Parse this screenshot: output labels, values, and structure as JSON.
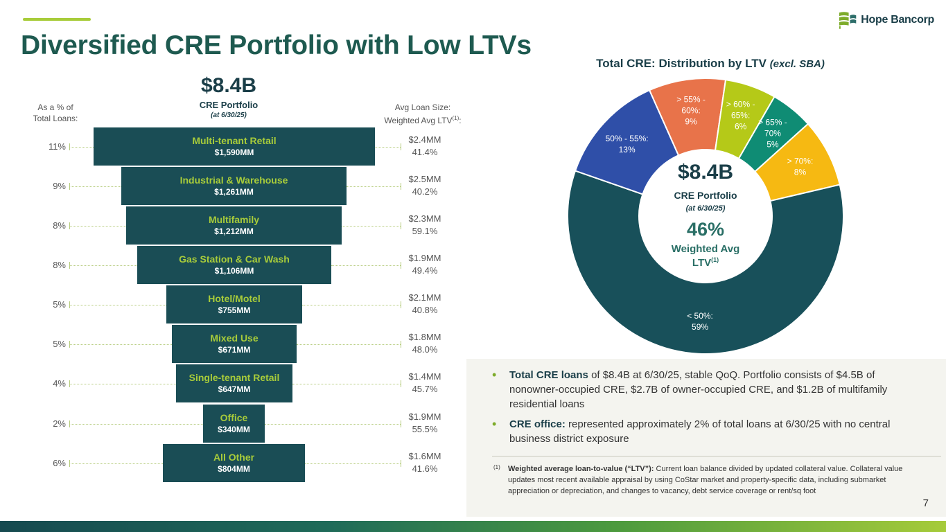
{
  "page": {
    "title": "Diversified CRE Portfolio with Low LTVs",
    "page_number": "7"
  },
  "logo": {
    "text": "Hope Bancorp",
    "colors": [
      "#7dab2a",
      "#1a3e48"
    ]
  },
  "portfolio": {
    "total": "$8.4B",
    "label": "CRE Portfolio",
    "date": "(at 6/30/25)"
  },
  "headers": {
    "left_line1": "As a % of",
    "left_line2": "Total Loans:",
    "right_line1": "Avg Loan Size:",
    "right_line2": "Weighted Avg LTV",
    "right_sup": "(1)",
    "right_suffix": ":"
  },
  "segments": [
    {
      "name": "Multi-tenant Retail",
      "amount": "$1,590MM",
      "pct": "11%",
      "avg_size": "$2.4MM",
      "ltv": "41.4%"
    },
    {
      "name": "Industrial & Warehouse",
      "amount": "$1,261MM",
      "pct": "9%",
      "avg_size": "$2.5MM",
      "ltv": "40.2%"
    },
    {
      "name": "Multifamily",
      "amount": "$1,212MM",
      "pct": "8%",
      "avg_size": "$2.3MM",
      "ltv": "59.1%"
    },
    {
      "name": "Gas Station & Car Wash",
      "amount": "$1,106MM",
      "pct": "8%",
      "avg_size": "$1.9MM",
      "ltv": "49.4%"
    },
    {
      "name": "Hotel/Motel",
      "amount": "$755MM",
      "pct": "5%",
      "avg_size": "$2.1MM",
      "ltv": "40.8%"
    },
    {
      "name": "Mixed Use",
      "amount": "$671MM",
      "pct": "5%",
      "avg_size": "$1.8MM",
      "ltv": "48.0%"
    },
    {
      "name": "Single-tenant Retail",
      "amount": "$647MM",
      "pct": "4%",
      "avg_size": "$1.4MM",
      "ltv": "45.7%"
    },
    {
      "name": "Office",
      "amount": "$340MM",
      "pct": "2%",
      "avg_size": "$1.9MM",
      "ltv": "55.5%"
    },
    {
      "name": "All Other",
      "amount": "$804MM",
      "pct": "6%",
      "avg_size": "$1.6MM",
      "ltv": "41.6%"
    }
  ],
  "donut": {
    "title": "Total CRE: Distribution by LTV",
    "title_suffix": "(excl. SBA)",
    "center_big": "$8.4B",
    "center_label": "CRE Portfolio",
    "center_date": "(at 6/30/25)",
    "center_pct": "46%",
    "center_line1": "Weighted Avg",
    "center_line2": "LTV",
    "center_sup": "(1)"
  },
  "chart_data": {
    "type": "pie",
    "title": "Total CRE: Distribution by LTV (excl. SBA)",
    "slices": [
      {
        "label": "> 55% - 60%",
        "value": 9,
        "color": "#e8734a",
        "label_lines": [
          "> 55% -",
          "60%:",
          "9%"
        ]
      },
      {
        "label": "> 60% - 65%",
        "value": 6,
        "color": "#b5c918",
        "label_lines": [
          "> 60% -",
          "65%:",
          "6%"
        ]
      },
      {
        "label": "> 65% - 70%",
        "value": 5,
        "color": "#0f8c74",
        "label_lines": [
          "> 65% -",
          "70%",
          "5%"
        ]
      },
      {
        "label": "> 70%",
        "value": 8,
        "color": "#f6b912",
        "label_lines": [
          "> 70%:",
          "8%"
        ]
      },
      {
        "label": "< 50%",
        "value": 59,
        "color": "#18505a",
        "label_lines": [
          "< 50%:",
          "59%"
        ]
      },
      {
        "label": "50% - 55%",
        "value": 13,
        "color": "#2f4fa8",
        "label_lines": [
          "50% - 55%:",
          "13%"
        ]
      }
    ]
  },
  "bullets": [
    {
      "bold": "Total CRE loans",
      "text": " of $8.4B at 6/30/25, stable QoQ. Portfolio consists of $4.5B of nonowner-occupied CRE, $2.7B of owner-occupied CRE, and $1.2B of multifamily residential loans"
    },
    {
      "bold": "CRE office:",
      "text": " represented approximately 2% of total loans at 6/30/25 with no central business district exposure"
    }
  ],
  "footnote": {
    "mark": "(1)",
    "bold": "Weighted average loan-to-value (“LTV”):",
    "text": "  Current loan balance divided by updated collateral value. Collateral value updates most recent available appraisal by using CoStar market and property-specific data, including submarket appreciation or depreciation, and changes to vacancy, debt service coverage or rent/sq foot"
  }
}
